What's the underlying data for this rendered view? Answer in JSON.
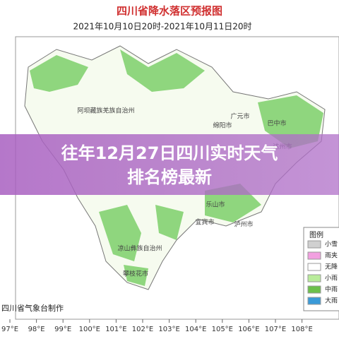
{
  "header": {
    "title": "四川省降水落区预报图",
    "subtitle": "2021年10月10日20时-2021年10月11日20时"
  },
  "overlay": {
    "lines": [
      "往年12月27日四川实时天气",
      "排名榜最新"
    ]
  },
  "legend": {
    "title": "图例",
    "items": [
      "小雪",
      "雨夹",
      "无降",
      "小雨",
      "中雨",
      "大雨"
    ]
  },
  "map": {
    "labels": [
      "阿坝藏族羌族自治州",
      "广元市",
      "巴中市",
      "绵阳市",
      "达州市",
      "乐山市",
      "宜宾市",
      "泸州市",
      "凉山彝族自治州",
      "攀枝花市"
    ],
    "credit": "四川省气象台制作",
    "longitudes": [
      "97°E",
      "98°E",
      "99°E",
      "100°E",
      "101°E",
      "102°E",
      "103°E",
      "104°E",
      "105°E",
      "106°E",
      "107°E",
      "108°E"
    ]
  }
}
